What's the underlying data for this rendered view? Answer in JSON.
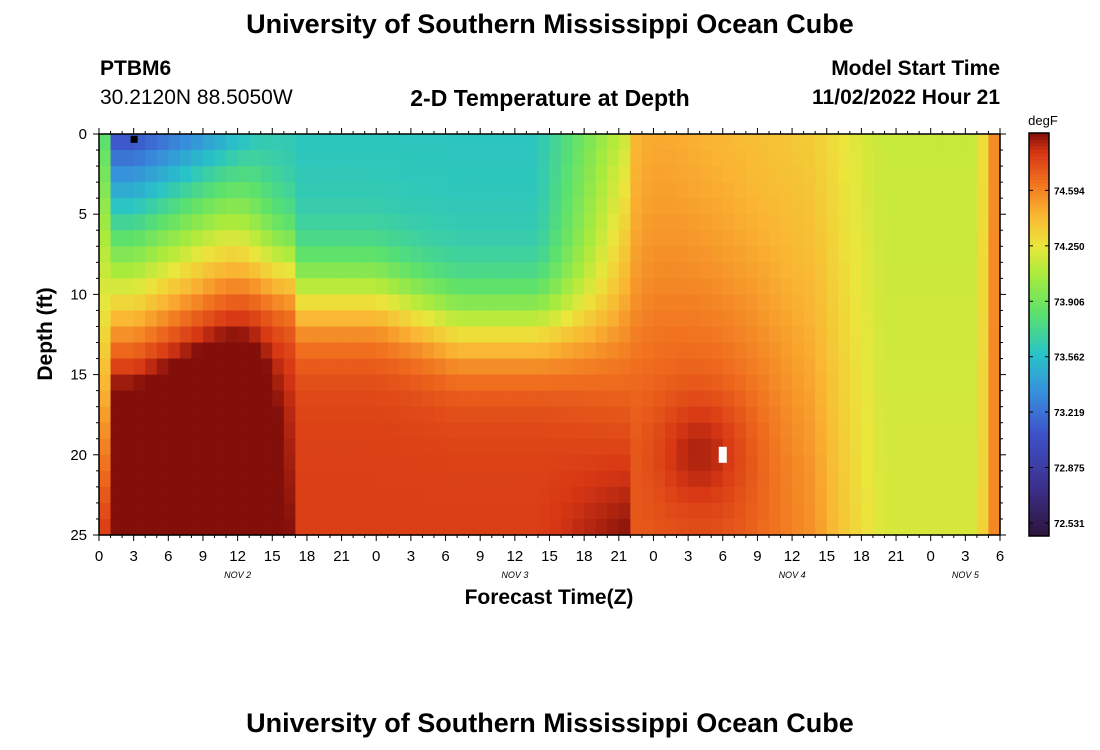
{
  "header": {
    "title": "University of Southern Mississippi Ocean Cube",
    "footer_title": "University of Southern Mississippi Ocean Cube",
    "station_id": "PTBM6",
    "station_location": "30.2120N  88.5050W",
    "plot_title": "2-D Temperature at Depth",
    "model_start_label": "Model Start Time",
    "model_start_value": "11/02/2022 Hour 21"
  },
  "chart_data": {
    "type": "heatmap",
    "title": "2-D Temperature at Depth",
    "xlabel": "Forecast Time(Z)",
    "ylabel": "Depth (ft)",
    "x_range_hours": [
      0,
      78
    ],
    "x_tick_labels": [
      "0",
      "3",
      "6",
      "9",
      "12",
      "15",
      "18",
      "21",
      "0",
      "3",
      "6",
      "9",
      "12",
      "15",
      "18",
      "21",
      "0",
      "3",
      "6",
      "9",
      "12",
      "15",
      "18",
      "21",
      "0",
      "3",
      "6"
    ],
    "day_labels": [
      {
        "label": "NOV 2",
        "hour": 12
      },
      {
        "label": "NOV 3",
        "hour": 36
      },
      {
        "label": "NOV 4",
        "hour": 60
      },
      {
        "label": "NOV 5",
        "hour": 75
      }
    ],
    "ylim": [
      0,
      25
    ],
    "y_ticks": [
      0,
      5,
      10,
      15,
      20,
      25
    ],
    "colorbar": {
      "unit": "degF",
      "min": 72.45,
      "max": 74.95,
      "tick_values": [
        74.594,
        74.25,
        73.906,
        73.562,
        73.219,
        72.875,
        72.531
      ],
      "tick_labels": [
        "74.594",
        "74.250",
        "73.906",
        "73.562",
        "73.219",
        "72.875",
        "72.531"
      ]
    },
    "markers": [
      {
        "name": "minimum",
        "hour": 3,
        "depth": 0.3,
        "color": "#000000"
      },
      {
        "name": "maximum",
        "hour": 54,
        "depth": 20,
        "color": "#ffffff"
      }
    ],
    "grid": false
  }
}
